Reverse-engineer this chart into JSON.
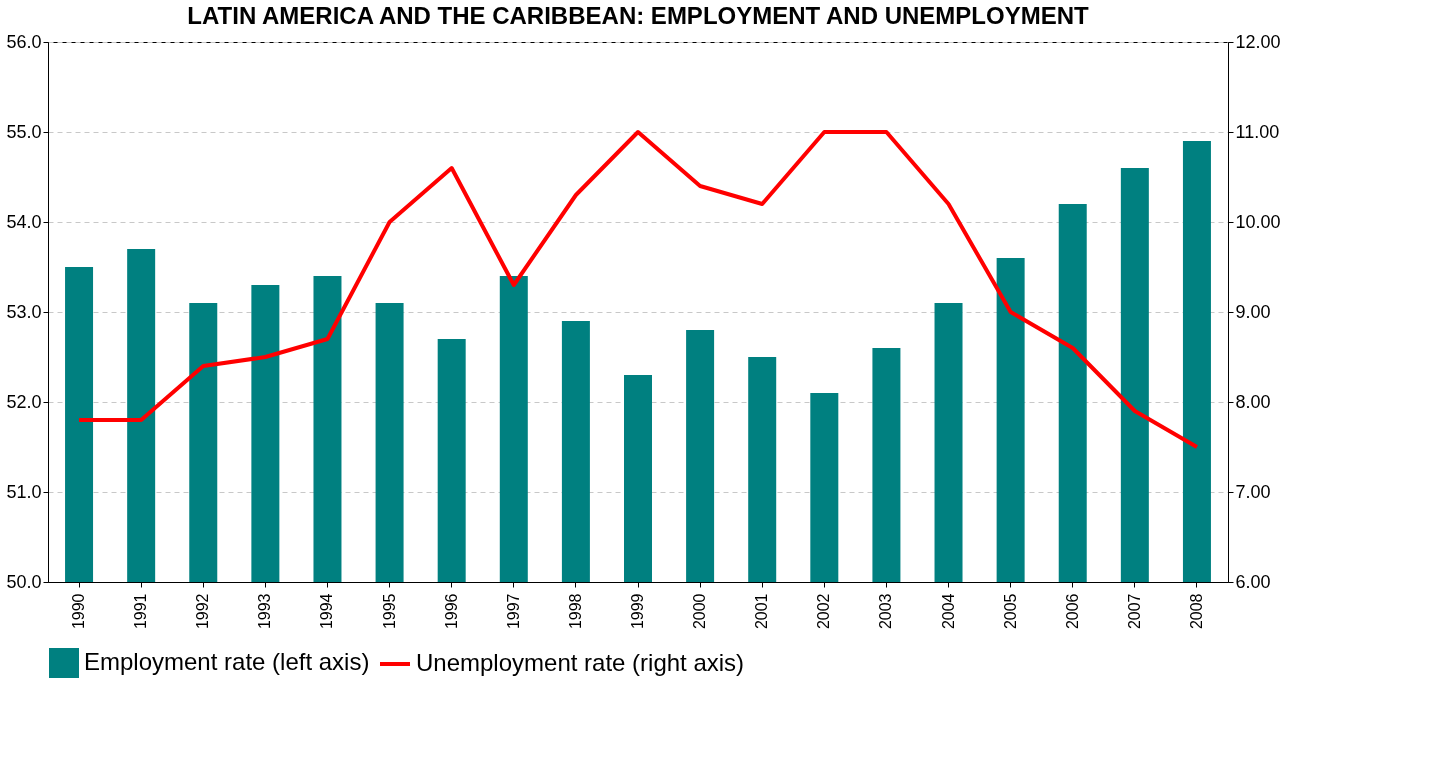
{
  "chart_data": {
    "type": "bar",
    "title": "LATIN AMERICA AND THE CARIBBEAN: EMPLOYMENT AND UNEMPLOYMENT",
    "categories": [
      "1990",
      "1991",
      "1992",
      "1993",
      "1994",
      "1995",
      "1996",
      "1997",
      "1998",
      "1999",
      "2000",
      "2001",
      "2002",
      "2003",
      "2004",
      "2005",
      "2006",
      "2007",
      "2008"
    ],
    "series": [
      {
        "name": "Employment rate (left axis)",
        "color": "#008080",
        "values": [
          53.5,
          53.7,
          53.1,
          53.3,
          53.4,
          53.1,
          52.7,
          53.4,
          52.9,
          52.3,
          52.8,
          52.5,
          52.1,
          52.6,
          53.1,
          53.6,
          54.2,
          54.6,
          54.9
        ]
      },
      {
        "name": "Unemployment rate (right axis)",
        "type": "line",
        "axis": "y2",
        "color": "#ff0000",
        "values": [
          7.8,
          7.8,
          8.4,
          8.5,
          8.7,
          10.0,
          10.6,
          9.3,
          10.3,
          11.0,
          10.4,
          10.2,
          11.0,
          11.0,
          10.2,
          9.0,
          8.6,
          7.9,
          7.5
        ]
      }
    ],
    "ylim": [
      50,
      56
    ],
    "yticks": [
      {
        "value": 50,
        "label": "50.0"
      },
      {
        "value": 51,
        "label": "51.0"
      },
      {
        "value": 52,
        "label": "52.0"
      },
      {
        "value": 53,
        "label": "53.0"
      },
      {
        "value": 54,
        "label": "54.0"
      },
      {
        "value": 55,
        "label": "55.0"
      },
      {
        "value": 56,
        "label": "56.0"
      }
    ],
    "y2lim": [
      6,
      12
    ],
    "y2ticks": [
      {
        "value": 6,
        "label": "6.00"
      },
      {
        "value": 7,
        "label": "7.00"
      },
      {
        "value": 8,
        "label": "8.00"
      },
      {
        "value": 9,
        "label": "9.00"
      },
      {
        "value": 10,
        "label": "10.00"
      },
      {
        "value": 11,
        "label": "11.00"
      },
      {
        "value": 12,
        "label": "12.00"
      }
    ],
    "grid": "y",
    "legend": "bottom",
    "marker": "none",
    "line_style": "solid"
  }
}
